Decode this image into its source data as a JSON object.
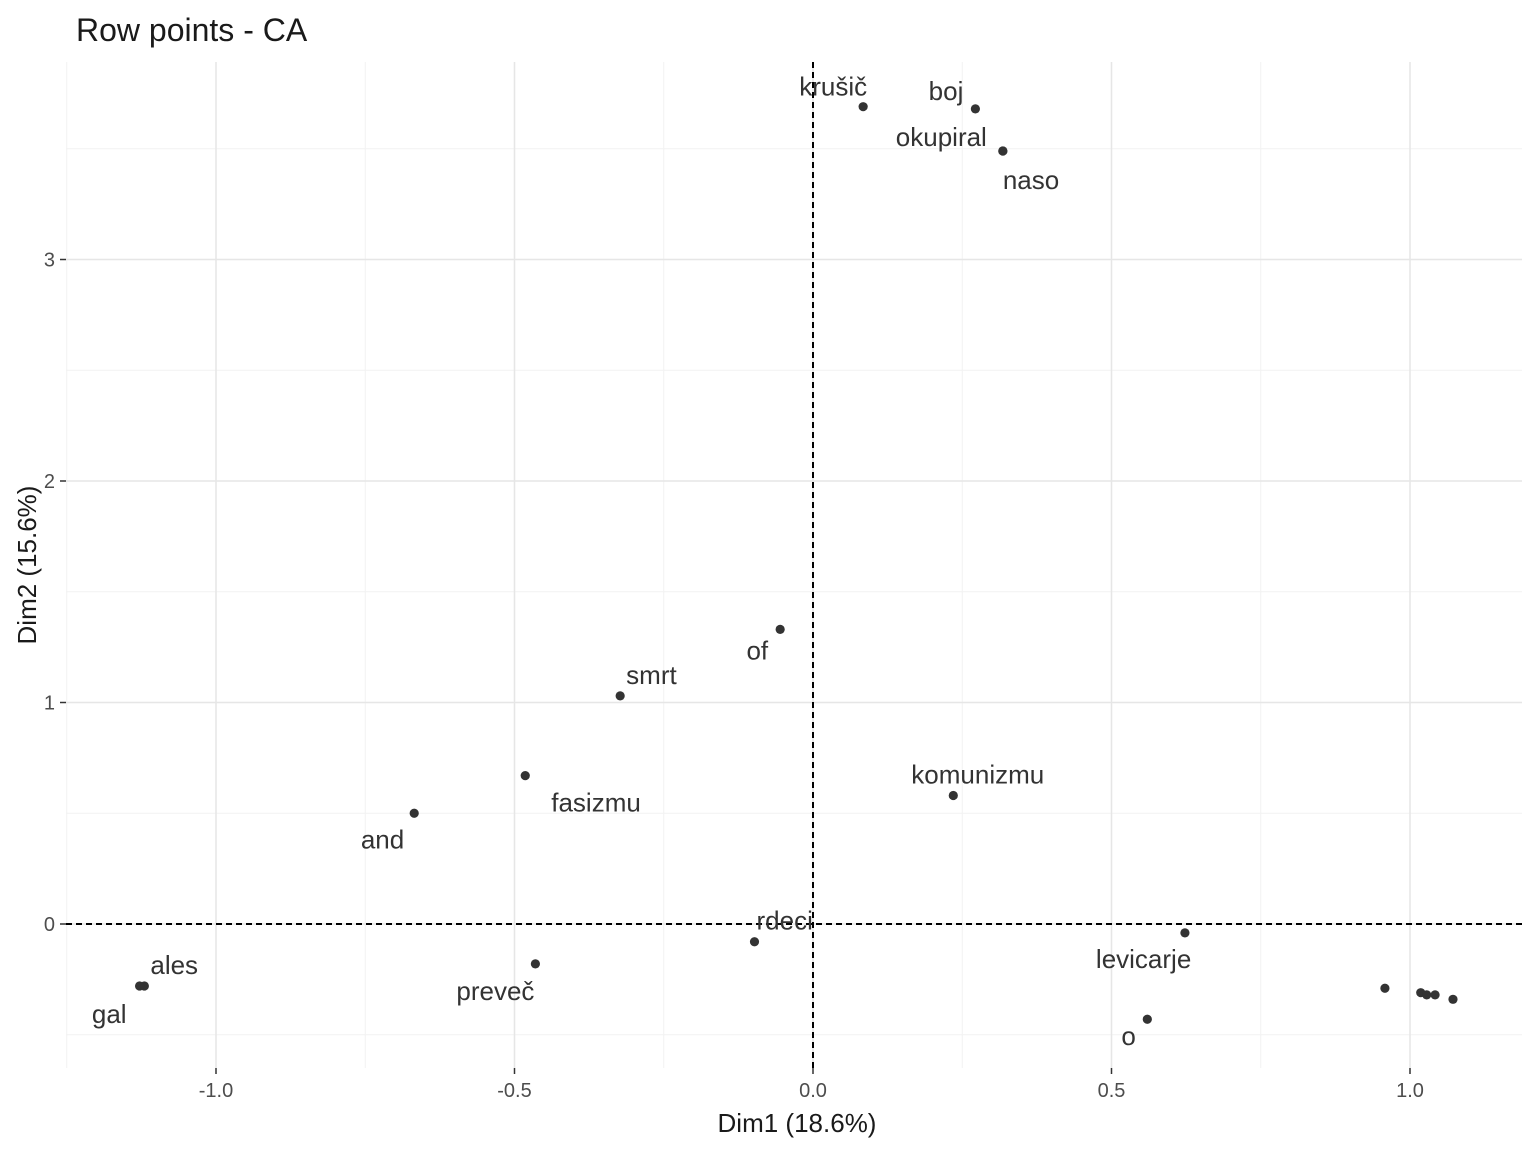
{
  "chart_data": {
    "type": "scatter",
    "title": "Row points - CA",
    "xlabel": "Dim1 (18.6%)",
    "ylabel": "Dim2 (15.6%)",
    "xlim": [
      -1.25,
      1.2
    ],
    "ylim": [
      -0.65,
      3.8
    ],
    "x_ticks": [
      -1.0,
      -0.5,
      0.0,
      0.5,
      1.0
    ],
    "x_tick_labels": [
      "-1.0",
      "-0.5",
      "0.0",
      "0.5",
      "1.0"
    ],
    "y_ticks": [
      0,
      1,
      2,
      3
    ],
    "y_tick_labels": [
      "0",
      "1",
      "2",
      "3"
    ],
    "grid": true,
    "reference_lines": {
      "x": 0,
      "y": 0,
      "style": "dashed"
    },
    "point_color": "#333333",
    "points": [
      {
        "label": "krušič",
        "x": 0.084,
        "y": 3.69
      },
      {
        "label": "boj",
        "x": 0.272,
        "y": 3.68
      },
      {
        "label": "okupiral",
        "x": 0.318,
        "y": 3.49
      },
      {
        "label": "naso",
        "x": 0.318,
        "y": 3.49
      },
      {
        "label": "of",
        "x": -0.055,
        "y": 1.33
      },
      {
        "label": "smrt",
        "x": -0.323,
        "y": 1.03
      },
      {
        "label": "fasizmu",
        "x": -0.482,
        "y": 0.67
      },
      {
        "label": "and",
        "x": -0.668,
        "y": 0.5
      },
      {
        "label": "komunizmu",
        "x": 0.235,
        "y": 0.58
      },
      {
        "label": "rdeci",
        "x": -0.098,
        "y": -0.08
      },
      {
        "label": "levicarje",
        "x": 0.623,
        "y": -0.04
      },
      {
        "label": "preveč",
        "x": -0.465,
        "y": -0.18
      },
      {
        "label": "ales",
        "x": -1.12,
        "y": -0.28
      },
      {
        "label": "gal",
        "x": -1.128,
        "y": -0.28
      },
      {
        "label": "o",
        "x": 0.56,
        "y": -0.43
      },
      {
        "label": "",
        "x": 0.958,
        "y": -0.29
      },
      {
        "label": "",
        "x": 1.018,
        "y": -0.31
      },
      {
        "label": "",
        "x": 1.028,
        "y": -0.32
      },
      {
        "label": "",
        "x": 1.042,
        "y": -0.32
      },
      {
        "label": "",
        "x": 1.072,
        "y": -0.34
      }
    ]
  }
}
